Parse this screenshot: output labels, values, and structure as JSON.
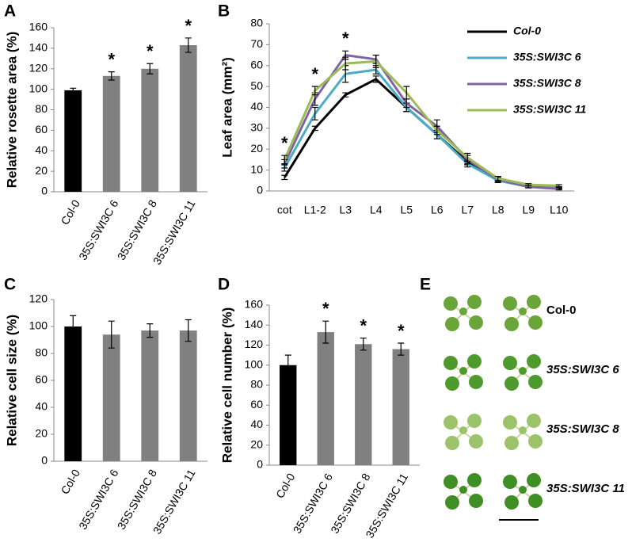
{
  "chart_data": [
    {
      "panel": "A",
      "type": "bar",
      "ylabel": "Relative rosette area (%)",
      "categories": [
        "Col-0",
        "35S:SWI3C 6",
        "35S:SWI3C 8",
        "35S:SWI3C 11"
      ],
      "values": [
        99,
        113,
        120,
        143
      ],
      "errors": [
        2,
        4,
        5,
        7
      ],
      "colors": [
        "#000000",
        "#808080",
        "#808080",
        "#808080"
      ],
      "significance": [
        null,
        "*",
        "*",
        "*"
      ],
      "ylim": [
        0,
        160
      ],
      "yticks": [
        0,
        20,
        40,
        60,
        80,
        100,
        120,
        140,
        160
      ]
    },
    {
      "panel": "B",
      "type": "line",
      "ylabel": "Leaf area (mm²)",
      "categories": [
        "cot",
        "L1-2",
        "L3",
        "L4",
        "L5",
        "L6",
        "L7",
        "L8",
        "L9",
        "L10"
      ],
      "series": [
        {
          "name": "Col-0",
          "color": "#000000",
          "values": [
            6.5,
            30,
            46,
            53.5,
            40,
            27,
            14,
            6,
            2.5,
            1.5
          ],
          "errors": [
            1,
            1,
            1,
            1.5,
            2,
            2,
            1.5,
            1,
            0.5,
            0.5
          ]
        },
        {
          "name": "35S:SWI3C 6",
          "color": "#4bacc6",
          "values": [
            11,
            37,
            56,
            58,
            40,
            27,
            13,
            5,
            2,
            1.5
          ],
          "errors": [
            1.5,
            3,
            4,
            2,
            2,
            2,
            1.5,
            1,
            0.5,
            0.5
          ]
        },
        {
          "name": "35S:SWI3C 8",
          "color": "#8064a2",
          "values": [
            13,
            44,
            65,
            63,
            42,
            31,
            15,
            5.5,
            2,
            1
          ],
          "errors": [
            2,
            3,
            2,
            2,
            2,
            3,
            2,
            1,
            0.5,
            0.5
          ]
        },
        {
          "name": "35S:SWI3C 11",
          "color": "#9bbb59",
          "values": [
            15,
            48,
            61,
            62,
            47,
            29,
            16,
            6,
            3,
            2.5
          ],
          "errors": [
            2,
            2,
            3,
            3,
            3,
            2,
            2,
            1,
            0.5,
            0.5
          ]
        }
      ],
      "significance": [
        "*",
        "*",
        "*",
        null,
        null,
        null,
        null,
        null,
        null,
        null
      ],
      "ylim": [
        0,
        80
      ],
      "yticks": [
        0,
        10,
        20,
        30,
        40,
        50,
        60,
        70,
        80
      ]
    },
    {
      "panel": "C",
      "type": "bar",
      "ylabel": "Relative cell size (%)",
      "categories": [
        "Col-0",
        "35S:SWI3C 6",
        "35S:SWI3C 8",
        "35S:SWI3C 11"
      ],
      "values": [
        100,
        94,
        97,
        97
      ],
      "errors": [
        8,
        10,
        5,
        8
      ],
      "colors": [
        "#000000",
        "#808080",
        "#808080",
        "#808080"
      ],
      "ylim": [
        0,
        120
      ],
      "yticks": [
        0,
        20,
        40,
        60,
        80,
        100,
        120
      ]
    },
    {
      "panel": "D",
      "type": "bar",
      "ylabel": "Relative cell number (%)",
      "categories": [
        "Col-0",
        "35S:SWI3C 6",
        "35S:SWI3C 8",
        "35S:SWI3C 11"
      ],
      "values": [
        100,
        133,
        121,
        116
      ],
      "errors": [
        10,
        11,
        6,
        6
      ],
      "colors": [
        "#000000",
        "#808080",
        "#808080",
        "#808080"
      ],
      "significance": [
        null,
        "*",
        "*",
        "*"
      ],
      "ylim": [
        0,
        160
      ],
      "yticks": [
        0,
        20,
        40,
        60,
        80,
        100,
        120,
        140,
        160
      ]
    }
  ],
  "panel_e": {
    "panel": "E",
    "labels": [
      "Col-0",
      "35S:SWI3C 6",
      "35S:SWI3C 8",
      "35S:SWI3C 11"
    ]
  }
}
